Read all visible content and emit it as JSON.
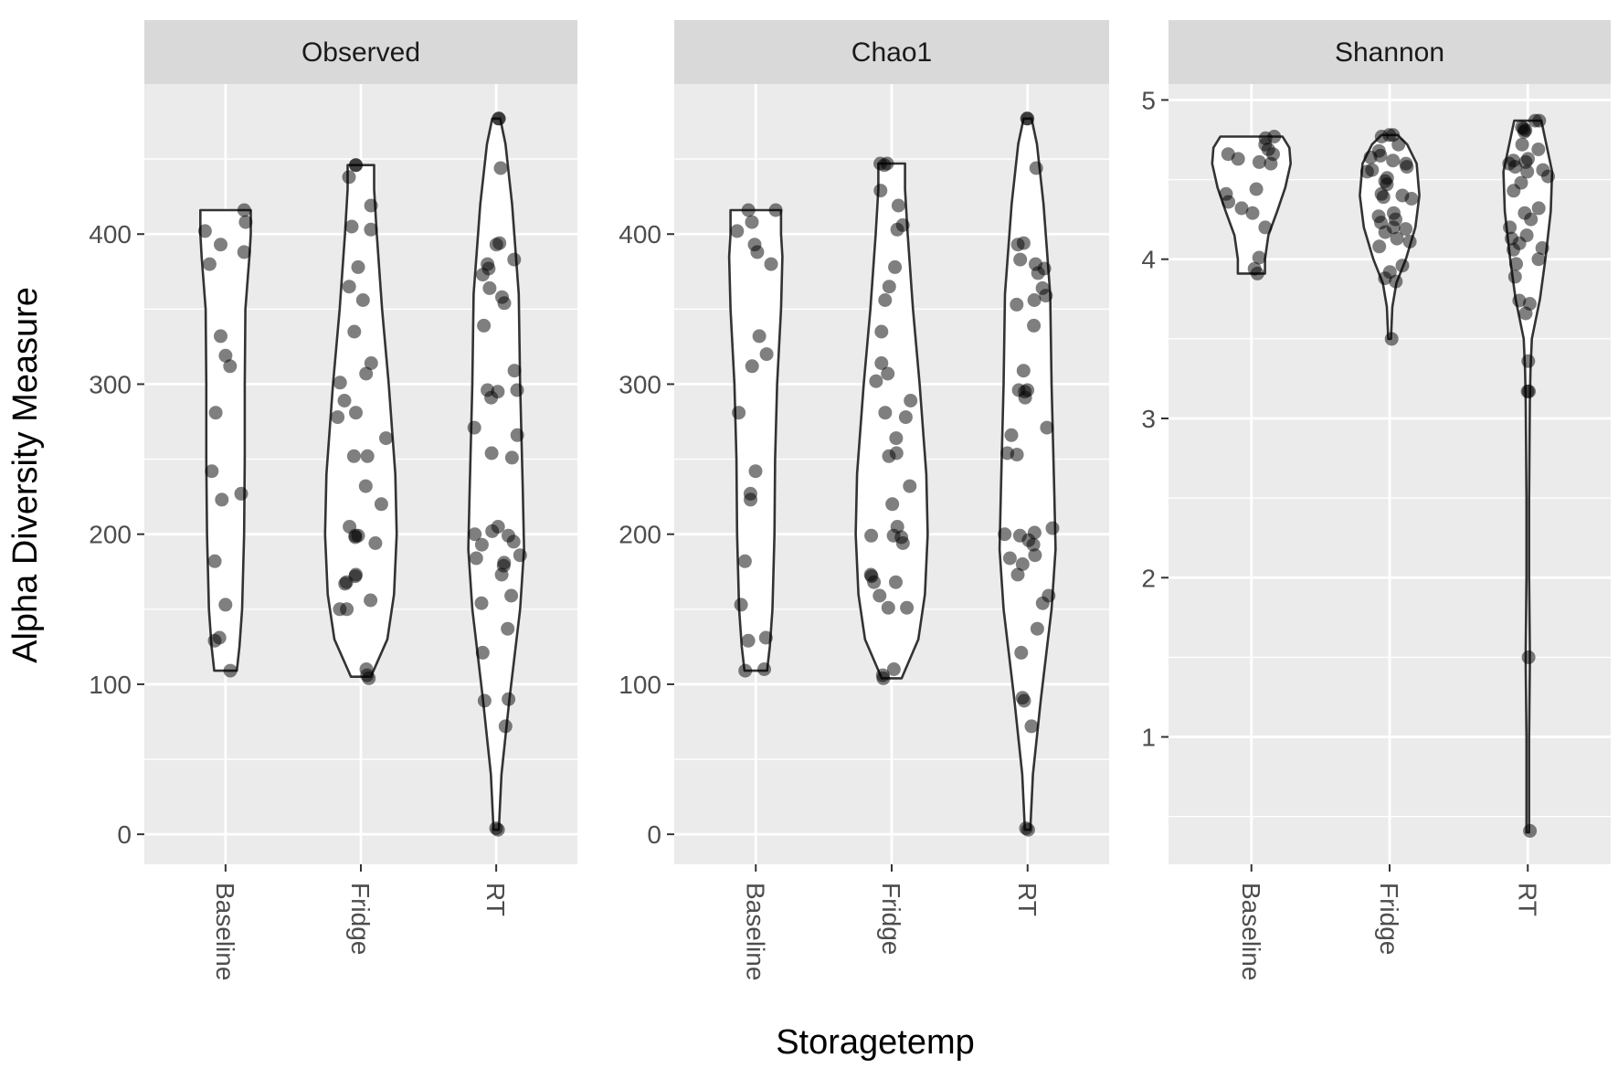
{
  "chart_data": {
    "type": "violin",
    "xlabel": "Storagetemp",
    "ylabel": "Alpha Diversity Measure",
    "categories": [
      "Baseline",
      "Fridge",
      "RT"
    ],
    "facets": [
      {
        "title": "Observed",
        "ylim": [
          -20,
          500
        ],
        "yticks": [
          0,
          100,
          200,
          300,
          400
        ],
        "violins": [
          {
            "category": "Baseline",
            "min": 109,
            "max": 416,
            "profile": [
              [
                109,
                0.17
              ],
              [
                125,
                0.21
              ],
              [
                150,
                0.25
              ],
              [
                200,
                0.28
              ],
              [
                250,
                0.29
              ],
              [
                300,
                0.29
              ],
              [
                350,
                0.3
              ],
              [
                385,
                0.36
              ],
              [
                400,
                0.38
              ],
              [
                416,
                0.38
              ]
            ]
          },
          {
            "category": "Fridge",
            "min": 105,
            "max": 446,
            "profile": [
              [
                105,
                0.15
              ],
              [
                130,
                0.4
              ],
              [
                160,
                0.5
              ],
              [
                200,
                0.54
              ],
              [
                240,
                0.52
              ],
              [
                300,
                0.42
              ],
              [
                350,
                0.32
              ],
              [
                400,
                0.24
              ],
              [
                430,
                0.2
              ],
              [
                446,
                0.2
              ]
            ]
          },
          {
            "category": "RT",
            "min": 3,
            "max": 477,
            "profile": [
              [
                3,
                0.04
              ],
              [
                40,
                0.08
              ],
              [
                90,
                0.2
              ],
              [
                150,
                0.36
              ],
              [
                190,
                0.42
              ],
              [
                230,
                0.4
              ],
              [
                300,
                0.36
              ],
              [
                360,
                0.34
              ],
              [
                420,
                0.24
              ],
              [
                460,
                0.14
              ],
              [
                477,
                0.06
              ]
            ]
          }
        ],
        "points": {
          "Baseline": [
            416,
            408,
            402,
            393,
            388,
            380,
            332,
            319,
            312,
            281,
            242,
            227,
            223,
            182,
            153,
            131,
            129,
            109
          ],
          "Fridge": [
            446,
            446,
            438,
            419,
            405,
            403,
            378,
            365,
            356,
            335,
            314,
            307,
            301,
            289,
            281,
            278,
            264,
            252,
            252,
            232,
            220,
            205,
            199,
            199,
            198,
            194,
            173,
            172,
            168,
            167,
            156,
            150,
            150,
            110,
            106,
            104
          ],
          "RT": [
            477,
            477,
            444,
            394,
            393,
            383,
            380,
            377,
            373,
            364,
            358,
            354,
            339,
            309,
            296,
            296,
            295,
            291,
            271,
            266,
            254,
            251,
            205,
            202,
            200,
            199,
            195,
            193,
            186,
            184,
            181,
            179,
            173,
            159,
            154,
            137,
            121,
            90,
            89,
            72,
            4,
            3
          ]
        }
      },
      {
        "title": "Chao1",
        "ylim": [
          -20,
          500
        ],
        "yticks": [
          0,
          100,
          200,
          300,
          400
        ],
        "violins": [
          {
            "category": "Baseline",
            "min": 109,
            "max": 416,
            "profile": [
              [
                109,
                0.17
              ],
              [
                125,
                0.21
              ],
              [
                150,
                0.25
              ],
              [
                200,
                0.28
              ],
              [
                250,
                0.29
              ],
              [
                300,
                0.32
              ],
              [
                350,
                0.38
              ],
              [
                385,
                0.4
              ],
              [
                400,
                0.38
              ],
              [
                416,
                0.38
              ]
            ]
          },
          {
            "category": "Fridge",
            "min": 104,
            "max": 447,
            "profile": [
              [
                104,
                0.15
              ],
              [
                130,
                0.4
              ],
              [
                160,
                0.5
              ],
              [
                200,
                0.54
              ],
              [
                240,
                0.52
              ],
              [
                300,
                0.42
              ],
              [
                350,
                0.32
              ],
              [
                400,
                0.24
              ],
              [
                430,
                0.2
              ],
              [
                447,
                0.2
              ]
            ]
          },
          {
            "category": "RT",
            "min": 3,
            "max": 477,
            "profile": [
              [
                3,
                0.04
              ],
              [
                40,
                0.08
              ],
              [
                90,
                0.2
              ],
              [
                150,
                0.36
              ],
              [
                190,
                0.42
              ],
              [
                230,
                0.4
              ],
              [
                300,
                0.36
              ],
              [
                360,
                0.34
              ],
              [
                420,
                0.24
              ],
              [
                460,
                0.14
              ],
              [
                477,
                0.06
              ]
            ]
          }
        ],
        "points": {
          "Baseline": [
            416,
            416,
            408,
            402,
            393,
            388,
            380,
            332,
            320,
            312,
            281,
            242,
            227,
            223,
            182,
            153,
            131,
            129,
            110,
            109
          ],
          "Fridge": [
            447,
            447,
            446,
            429,
            419,
            406,
            403,
            378,
            365,
            356,
            335,
            314,
            307,
            302,
            289,
            281,
            278,
            264,
            254,
            252,
            232,
            220,
            205,
            199,
            199,
            198,
            194,
            173,
            172,
            168,
            168,
            159,
            151,
            151,
            110,
            106,
            104
          ],
          "RT": [
            477,
            477,
            444,
            394,
            393,
            383,
            380,
            377,
            374,
            364,
            359,
            356,
            353,
            339,
            309,
            296,
            296,
            295,
            291,
            271,
            266,
            254,
            253,
            204,
            201,
            200,
            199,
            196,
            193,
            186,
            184,
            180,
            173,
            159,
            154,
            137,
            121,
            91,
            89,
            72,
            4,
            3
          ]
        }
      },
      {
        "title": "Shannon",
        "ylim": [
          0.2,
          5.1
        ],
        "yticks": [
          1,
          2,
          3,
          4,
          5
        ],
        "violins": [
          {
            "category": "Baseline",
            "min": 3.91,
            "max": 4.77,
            "profile": [
              [
                3.91,
                0.2
              ],
              [
                4.0,
                0.2
              ],
              [
                4.15,
                0.25
              ],
              [
                4.3,
                0.38
              ],
              [
                4.45,
                0.5
              ],
              [
                4.6,
                0.58
              ],
              [
                4.7,
                0.56
              ],
              [
                4.77,
                0.46
              ]
            ]
          },
          {
            "category": "Fridge",
            "min": 3.5,
            "max": 4.78,
            "profile": [
              [
                3.5,
                0.02
              ],
              [
                3.7,
                0.04
              ],
              [
                3.85,
                0.1
              ],
              [
                4.0,
                0.24
              ],
              [
                4.2,
                0.38
              ],
              [
                4.4,
                0.44
              ],
              [
                4.6,
                0.4
              ],
              [
                4.72,
                0.26
              ],
              [
                4.78,
                0.12
              ]
            ]
          },
          {
            "category": "RT",
            "min": 0.4,
            "max": 4.87,
            "profile": [
              [
                0.4,
                0.02
              ],
              [
                1.0,
                0.02
              ],
              [
                1.45,
                0.03
              ],
              [
                1.55,
                0.03
              ],
              [
                2.0,
                0.02
              ],
              [
                2.5,
                0.02
              ],
              [
                3.1,
                0.03
              ],
              [
                3.3,
                0.04
              ],
              [
                3.5,
                0.06
              ],
              [
                3.75,
                0.18
              ],
              [
                4.0,
                0.26
              ],
              [
                4.3,
                0.34
              ],
              [
                4.55,
                0.36
              ],
              [
                4.75,
                0.26
              ],
              [
                4.87,
                0.2
              ]
            ]
          }
        ],
        "points": {
          "Baseline": [
            4.77,
            4.76,
            4.72,
            4.69,
            4.66,
            4.66,
            4.63,
            4.61,
            4.6,
            4.44,
            4.41,
            4.36,
            4.32,
            4.29,
            4.2,
            4.01,
            3.94,
            3.91
          ],
          "Fridge": [
            4.78,
            4.78,
            4.77,
            4.72,
            4.68,
            4.65,
            4.64,
            4.62,
            4.6,
            4.58,
            4.56,
            4.55,
            4.51,
            4.49,
            4.47,
            4.41,
            4.4,
            4.39,
            4.38,
            4.29,
            4.27,
            4.25,
            4.23,
            4.2,
            4.19,
            4.17,
            4.13,
            4.11,
            4.08,
            3.96,
            3.92,
            3.88,
            3.86,
            3.5
          ],
          "RT": [
            4.87,
            4.87,
            4.83,
            4.82,
            4.81,
            4.8,
            4.72,
            4.69,
            4.63,
            4.62,
            4.61,
            4.6,
            4.58,
            4.56,
            4.55,
            4.52,
            4.48,
            4.43,
            4.32,
            4.29,
            4.25,
            4.2,
            4.15,
            4.13,
            4.1,
            4.07,
            4.06,
            4.0,
            3.97,
            3.89,
            3.74,
            3.72,
            3.66,
            3.36,
            3.17,
            3.17,
            1.5,
            0.41
          ]
        }
      }
    ]
  }
}
